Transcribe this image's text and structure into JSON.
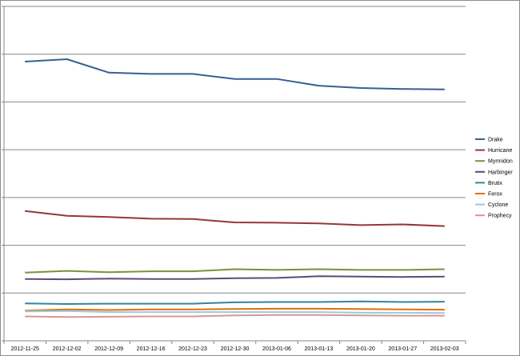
{
  "chart_data": {
    "type": "line",
    "title": "",
    "xlabel": "",
    "ylabel": "",
    "ylim": [
      0,
      100
    ],
    "grid": true,
    "legend_position": "right",
    "y_tick_labels_visible": false,
    "categories": [
      "2012-11-25",
      "2012-12-02",
      "2012-12-09",
      "2012-12-16",
      "2012-12-23",
      "2012-12-30",
      "2013-01-06",
      "2013-01-13",
      "2013-01-20",
      "2013-01-27",
      "2013-02-03"
    ],
    "series": [
      {
        "name": "Drake",
        "color": "#366092",
        "values": [
          83.5,
          84.2,
          80.2,
          79.8,
          79.8,
          78.3,
          78.3,
          76.3,
          75.6,
          75.3,
          75.2
        ]
      },
      {
        "name": "Hurricane",
        "color": "#953735",
        "values": [
          38.8,
          37.4,
          37.0,
          36.5,
          36.4,
          35.4,
          35.3,
          35.1,
          34.6,
          34.8,
          34.3
        ]
      },
      {
        "name": "Myrmidon",
        "color": "#77933c",
        "values": [
          20.4,
          20.9,
          20.5,
          20.8,
          20.8,
          21.4,
          21.2,
          21.4,
          21.2,
          21.2,
          21.4
        ]
      },
      {
        "name": "Harbinger",
        "color": "#5f497a",
        "values": [
          18.5,
          18.4,
          18.6,
          18.5,
          18.5,
          18.7,
          18.8,
          19.3,
          19.2,
          19.1,
          19.2
        ]
      },
      {
        "name": "Brutix",
        "color": "#31859c",
        "values": [
          11.2,
          11.0,
          11.1,
          11.1,
          11.1,
          11.5,
          11.6,
          11.6,
          11.8,
          11.6,
          11.7
        ]
      },
      {
        "name": "Ferox",
        "color": "#e46c0a",
        "values": [
          9.0,
          9.4,
          9.2,
          9.4,
          9.4,
          9.5,
          9.6,
          9.6,
          9.5,
          9.4,
          9.3
        ]
      },
      {
        "name": "Cyclone",
        "color": "#93cddd",
        "values": [
          8.8,
          8.9,
          8.6,
          8.6,
          8.6,
          8.6,
          8.6,
          8.6,
          8.4,
          8.4,
          8.3
        ]
      },
      {
        "name": "Prophecy",
        "color": "#d99694",
        "values": [
          7.3,
          7.1,
          7.2,
          7.3,
          7.3,
          7.6,
          7.7,
          7.7,
          7.6,
          7.5,
          7.5
        ]
      }
    ]
  }
}
